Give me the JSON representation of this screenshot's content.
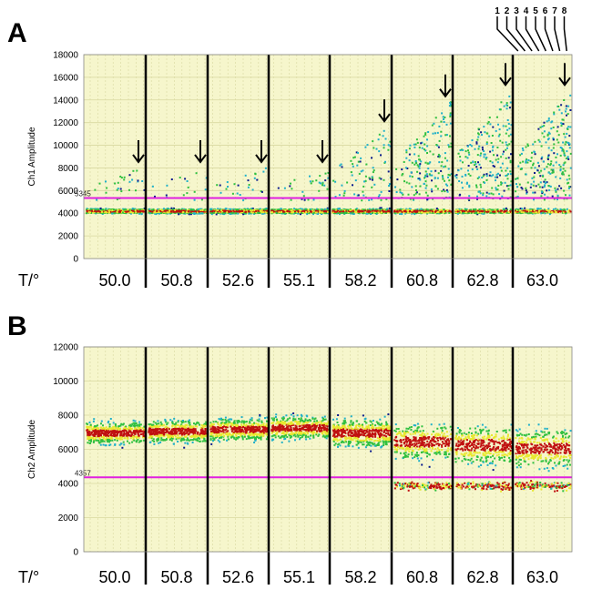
{
  "chart_data": [
    {
      "type": "scatter",
      "panel": "A",
      "ylabel": "Ch1 Amplitude",
      "ylim": [
        0,
        18000
      ],
      "yticks": [
        0,
        2000,
        4000,
        6000,
        8000,
        10000,
        12000,
        14000,
        16000,
        18000
      ],
      "threshold": {
        "value": 5345,
        "label": "5345",
        "color": "#e020e0"
      },
      "x_prefix": "T/°",
      "wells_per_group": 8,
      "groups": [
        {
          "temp": "50.0",
          "arrow_at": 8200
        },
        {
          "temp": "50.8",
          "arrow_at": 8200
        },
        {
          "temp": "52.6",
          "arrow_at": 8200
        },
        {
          "temp": "55.1",
          "arrow_at": 8200
        },
        {
          "temp": "58.2",
          "arrow_at": 11800
        },
        {
          "temp": "60.8",
          "arrow_at": 14000
        },
        {
          "temp": "62.8",
          "arrow_at": 15000
        },
        {
          "temp": "63.0",
          "arrow_at": 15000
        }
      ],
      "well_numbers": [
        "1",
        "2",
        "3",
        "4",
        "5",
        "6",
        "7",
        "8"
      ]
    },
    {
      "type": "scatter",
      "panel": "B",
      "ylabel": "Ch2 Amplitude",
      "ylim": [
        0,
        12000
      ],
      "yticks": [
        0,
        2000,
        4000,
        6000,
        8000,
        10000,
        12000
      ],
      "threshold": {
        "value": 4357,
        "label": "4357",
        "color": "#e020e0"
      },
      "x_prefix": "T/°",
      "groups": [
        {
          "temp": "50.0"
        },
        {
          "temp": "50.8"
        },
        {
          "temp": "52.6"
        },
        {
          "temp": "55.1"
        },
        {
          "temp": "58.2"
        },
        {
          "temp": "60.8"
        },
        {
          "temp": "62.8"
        },
        {
          "temp": "63.0"
        }
      ]
    }
  ],
  "colors": {
    "plot_bg": "#f6f6cc",
    "grid": "#d8d8a0",
    "threshold": "#e020e0",
    "dots_low": "#0a1a8c",
    "dots_mid": "#20b0c8",
    "dots_green": "#30c040",
    "dots_yellow": "#e8e830",
    "dots_red": "#c01010"
  }
}
